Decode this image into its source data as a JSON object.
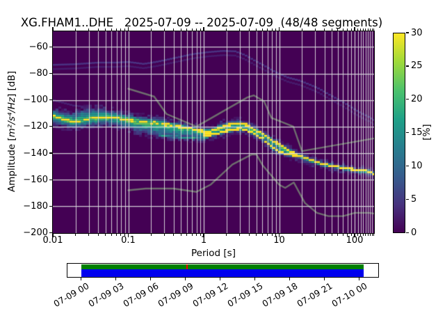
{
  "title": "XG.FHAM1..DHE   2025-07-09 -- 2025-07-09  (48/48 segments)",
  "axes": {
    "xlabel": "Period [s]",
    "ylabel_prefix": "Amplitude [",
    "ylabel_math": "m²/s⁴/Hz",
    "ylabel_suffix": "] [dB]",
    "x_tick_labels": [
      "0.01",
      "0.1",
      "1",
      "10",
      "100"
    ],
    "y_tick_labels": [
      "−60",
      "−80",
      "−100",
      "−120",
      "−140",
      "−160",
      "−180",
      "−200"
    ]
  },
  "colorbar": {
    "label": "[%]",
    "tick_labels": [
      "0",
      "5",
      "10",
      "15",
      "20",
      "25",
      "30"
    ],
    "tick_values": [
      0,
      5,
      10,
      15,
      20,
      25,
      30
    ],
    "min": 0,
    "max": 30,
    "colormap": "viridis"
  },
  "timeline": {
    "tick_labels": [
      "07-09 00",
      "07-09 03",
      "07-09 06",
      "07-09 09",
      "07-09 12",
      "07-09 15",
      "07-09 18",
      "07-09 21",
      "07-10 00"
    ],
    "tick_hours": [
      0,
      3,
      6,
      9,
      12,
      15,
      18,
      21,
      24
    ],
    "fill_start_hour": 0,
    "fill_end_hour": 24.4,
    "gap_hour": 9.15,
    "processed_color": "#008000",
    "coverage_color": "#0000ee",
    "gap_color": "#ee0000"
  },
  "chart_data": {
    "type": "heatmap",
    "title": "XG.FHAM1..DHE   2025-07-09 -- 2025-07-09  (48/48 segments)",
    "xlabel": "Period [s]",
    "ylabel": "Amplitude [m²/s⁴/Hz] [dB]",
    "xscale": "log",
    "xlim": [
      0.01,
      181
    ],
    "ylim": [
      -200,
      -48
    ],
    "grid": true,
    "background_color": "#440154",
    "colorbar_label": "[%]",
    "colorbar_range": [
      0,
      30
    ],
    "x_major_ticks": [
      0.01,
      0.1,
      1,
      10,
      100
    ],
    "x_minor_ticks": [
      0.02,
      0.03,
      0.04,
      0.05,
      0.06,
      0.07,
      0.08,
      0.09,
      0.2,
      0.3,
      0.4,
      0.5,
      0.6,
      0.7,
      0.8,
      0.9,
      2,
      3,
      4,
      5,
      6,
      7,
      8,
      9,
      20,
      30,
      40,
      50,
      60,
      70,
      80,
      90,
      110,
      120,
      130,
      140,
      150,
      160,
      170,
      180
    ],
    "y_ticks": [
      -60,
      -80,
      -100,
      -120,
      -140,
      -160,
      -180,
      -200
    ],
    "y_gridlines": [
      -60,
      -80,
      -100,
      -120,
      -140,
      -160,
      -180
    ],
    "psd_mode_db": [
      [
        0.01,
        -112
      ],
      [
        0.013,
        -114
      ],
      [
        0.018,
        -116.3
      ],
      [
        0.025,
        -115.2
      ],
      [
        0.035,
        -114.2
      ],
      [
        0.05,
        -113.2
      ],
      [
        0.065,
        -113.3
      ],
      [
        0.08,
        -114.2
      ],
      [
        0.1,
        -115
      ],
      [
        0.14,
        -116
      ],
      [
        0.2,
        -116.8
      ],
      [
        0.28,
        -117.8
      ],
      [
        0.4,
        -119
      ],
      [
        0.55,
        -120.6
      ],
      [
        0.75,
        -122.2
      ],
      [
        0.95,
        -123.3
      ],
      [
        1.2,
        -123.5
      ],
      [
        1.6,
        -121.3
      ],
      [
        2.0,
        -119.2
      ],
      [
        2.5,
        -118
      ],
      [
        3.1,
        -117.8
      ],
      [
        3.7,
        -118.8
      ],
      [
        4.8,
        -122.5
      ],
      [
        6.0,
        -125.5
      ],
      [
        7.8,
        -129.8
      ],
      [
        10,
        -133.5
      ],
      [
        13,
        -137.5
      ],
      [
        18.4,
        -141.8
      ],
      [
        28,
        -146
      ],
      [
        40,
        -148.5
      ],
      [
        66,
        -150.7
      ],
      [
        100,
        -152.5
      ],
      [
        164,
        -154
      ],
      [
        181,
        -155.3
      ]
    ],
    "psd_second_mode_db": [
      [
        0.95,
        -126.3
      ],
      [
        1.2,
        -126.3
      ],
      [
        1.6,
        -125
      ],
      [
        2.0,
        -123.3
      ],
      [
        2.5,
        -122
      ],
      [
        3.1,
        -121.5
      ],
      [
        3.7,
        -122.3
      ],
      [
        4.8,
        -126
      ],
      [
        6.0,
        -129
      ],
      [
        7.8,
        -135
      ],
      [
        10,
        -138.5
      ],
      [
        13,
        -140.8
      ],
      [
        18.4,
        -142.2
      ]
    ],
    "psd_band_top_db": [
      [
        0.01,
        -107.5
      ],
      [
        0.015,
        -109
      ],
      [
        0.02,
        -109.5
      ],
      [
        0.028,
        -105.5
      ],
      [
        0.04,
        -106
      ],
      [
        0.055,
        -107.5
      ],
      [
        0.08,
        -109.5
      ],
      [
        0.12,
        -111.5
      ],
      [
        0.18,
        -113
      ],
      [
        0.28,
        -114.8
      ],
      [
        0.4,
        -116.5
      ],
      [
        0.6,
        -118.5
      ],
      [
        0.85,
        -120.5
      ],
      [
        1.2,
        -121.3
      ],
      [
        1.7,
        -117.5
      ],
      [
        2.2,
        -115.8
      ],
      [
        3.0,
        -115.5
      ],
      [
        3.7,
        -116.8
      ],
      [
        4.8,
        -120.5
      ],
      [
        6.0,
        -123.5
      ],
      [
        7.8,
        -127.8
      ],
      [
        10,
        -131.5
      ],
      [
        13,
        -135.5
      ],
      [
        18.4,
        -140
      ],
      [
        28,
        -144.3
      ],
      [
        40,
        -146.8
      ],
      [
        66,
        -149
      ],
      [
        100,
        -151
      ],
      [
        164,
        -152.5
      ],
      [
        181,
        -153.8
      ]
    ],
    "psd_band_bottom_db": [
      [
        0.01,
        -118.5
      ],
      [
        0.015,
        -120.5
      ],
      [
        0.022,
        -121
      ],
      [
        0.03,
        -120
      ],
      [
        0.05,
        -118.7
      ],
      [
        0.08,
        -120.5
      ],
      [
        0.12,
        -124
      ],
      [
        0.2,
        -127
      ],
      [
        0.35,
        -128.5
      ],
      [
        0.6,
        -129.2
      ],
      [
        0.9,
        -129.6
      ],
      [
        1.3,
        -128.5
      ],
      [
        1.8,
        -126.5
      ],
      [
        2.4,
        -124
      ],
      [
        3.1,
        -123.3
      ],
      [
        3.7,
        -124.3
      ],
      [
        4.8,
        -128
      ],
      [
        6.0,
        -131
      ],
      [
        7.8,
        -137
      ],
      [
        10,
        -140.5
      ],
      [
        13,
        -142.8
      ],
      [
        18.4,
        -144.5
      ],
      [
        28,
        -148.3
      ],
      [
        40,
        -150.8
      ],
      [
        66,
        -153
      ],
      [
        100,
        -155
      ],
      [
        164,
        -156.5
      ],
      [
        181,
        -157.8
      ]
    ],
    "psd_quiet_mode_db": [
      [
        0.25,
        -126.5
      ],
      [
        0.4,
        -127.6
      ],
      [
        0.6,
        -128.4
      ],
      [
        0.9,
        -128.9
      ],
      [
        1.2,
        -128.2
      ]
    ],
    "outlier_trace_high_db": [
      [
        0.01,
        -73.5
      ],
      [
        0.02,
        -73
      ],
      [
        0.04,
        -71.8
      ],
      [
        0.07,
        -71.8
      ],
      [
        0.1,
        -71.3
      ],
      [
        0.16,
        -72.8
      ],
      [
        0.25,
        -71
      ],
      [
        0.4,
        -68.5
      ],
      [
        0.7,
        -65.5
      ],
      [
        1.1,
        -64
      ],
      [
        1.8,
        -63
      ],
      [
        2.6,
        -63.3
      ],
      [
        3.5,
        -66
      ],
      [
        5,
        -71
      ],
      [
        6.3,
        -74
      ],
      [
        9,
        -79
      ],
      [
        13,
        -83
      ],
      [
        19,
        -85.5
      ],
      [
        27,
        -89
      ],
      [
        34,
        -91.5
      ],
      [
        50,
        -97
      ],
      [
        70,
        -101.5
      ],
      [
        100,
        -107
      ],
      [
        140,
        -111.5
      ],
      [
        181,
        -115
      ]
    ],
    "outlier_trace_offset_db": -3.2,
    "outlier_trace_left_db": [
      [
        0.01,
        -100
      ],
      [
        0.019,
        -104.2
      ],
      [
        0.032,
        -105.5
      ]
    ],
    "noise_model_high_db": [
      [
        0.1,
        -91.5
      ],
      [
        0.22,
        -97.4
      ],
      [
        0.32,
        -110.5
      ],
      [
        0.8,
        -120.0
      ],
      [
        3.8,
        -98.0
      ],
      [
        4.6,
        -96.5
      ],
      [
        6.3,
        -101.0
      ],
      [
        7.9,
        -113.5
      ],
      [
        15.4,
        -120.0
      ],
      [
        20.0,
        -138.5
      ],
      [
        354.8,
        -126.0
      ]
    ],
    "noise_model_low_db": [
      [
        0.1,
        -168.0
      ],
      [
        0.17,
        -166.7
      ],
      [
        0.4,
        -166.7
      ],
      [
        0.8,
        -169.2
      ],
      [
        1.24,
        -163.7
      ],
      [
        2.4,
        -148.6
      ],
      [
        4.3,
        -141.1
      ],
      [
        5.0,
        -141.1
      ],
      [
        6.0,
        -149.0
      ],
      [
        10.0,
        -163.8
      ],
      [
        12.0,
        -166.2
      ],
      [
        15.6,
        -162.1
      ],
      [
        21.9,
        -177.5
      ],
      [
        31.6,
        -185.0
      ],
      [
        45.0,
        -187.5
      ],
      [
        70.0,
        -187.5
      ],
      [
        101.0,
        -185.0
      ],
      [
        154.0,
        -185.0
      ],
      [
        328.0,
        -187.5
      ]
    ],
    "noise_model_color": "#6e6e6e",
    "grid_color": "#dcdce0",
    "mode_color": "#fde725"
  }
}
